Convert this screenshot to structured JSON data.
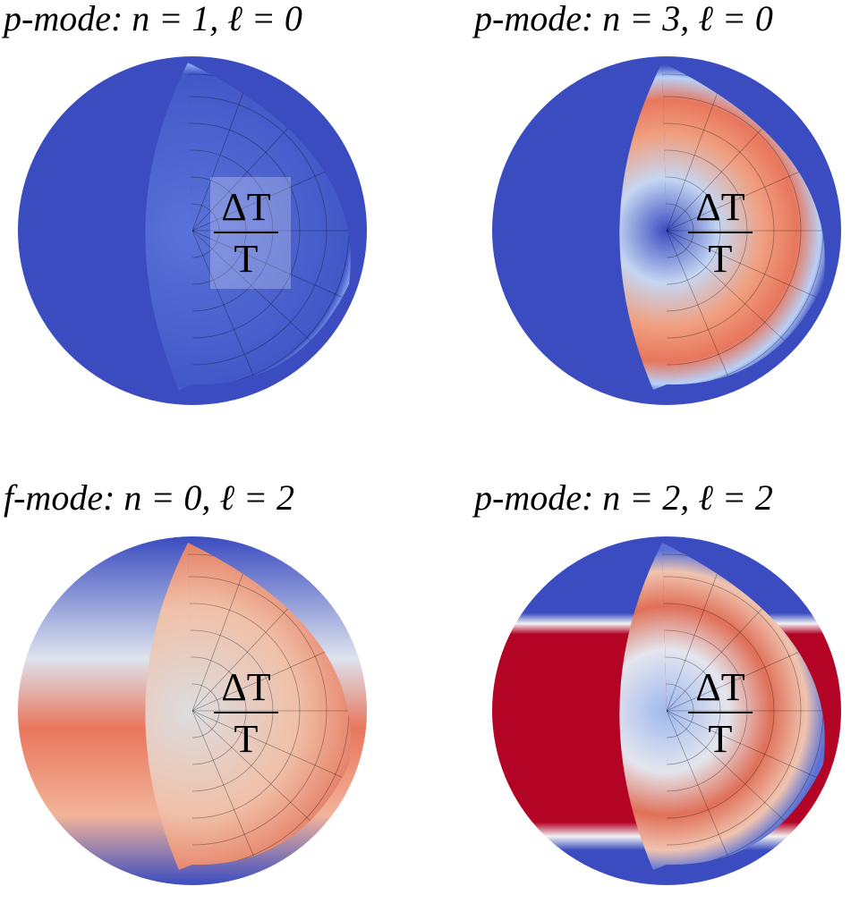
{
  "panels": [
    {
      "title": "p-mode: n = 1, ℓ = 0",
      "label": {
        "numerator": "ΔT",
        "denominator": "T"
      }
    },
    {
      "title": "p-mode: n = 3, ℓ = 0",
      "label": {
        "numerator": "ΔT",
        "denominator": "T"
      }
    },
    {
      "title": "f-mode: n = 0, ℓ = 2",
      "label": {
        "numerator": "ΔT",
        "denominator": "T"
      }
    },
    {
      "title": "p-mode: n = 2, ℓ = 2",
      "label": {
        "numerator": "ΔT",
        "denominator": "T"
      }
    }
  ]
}
